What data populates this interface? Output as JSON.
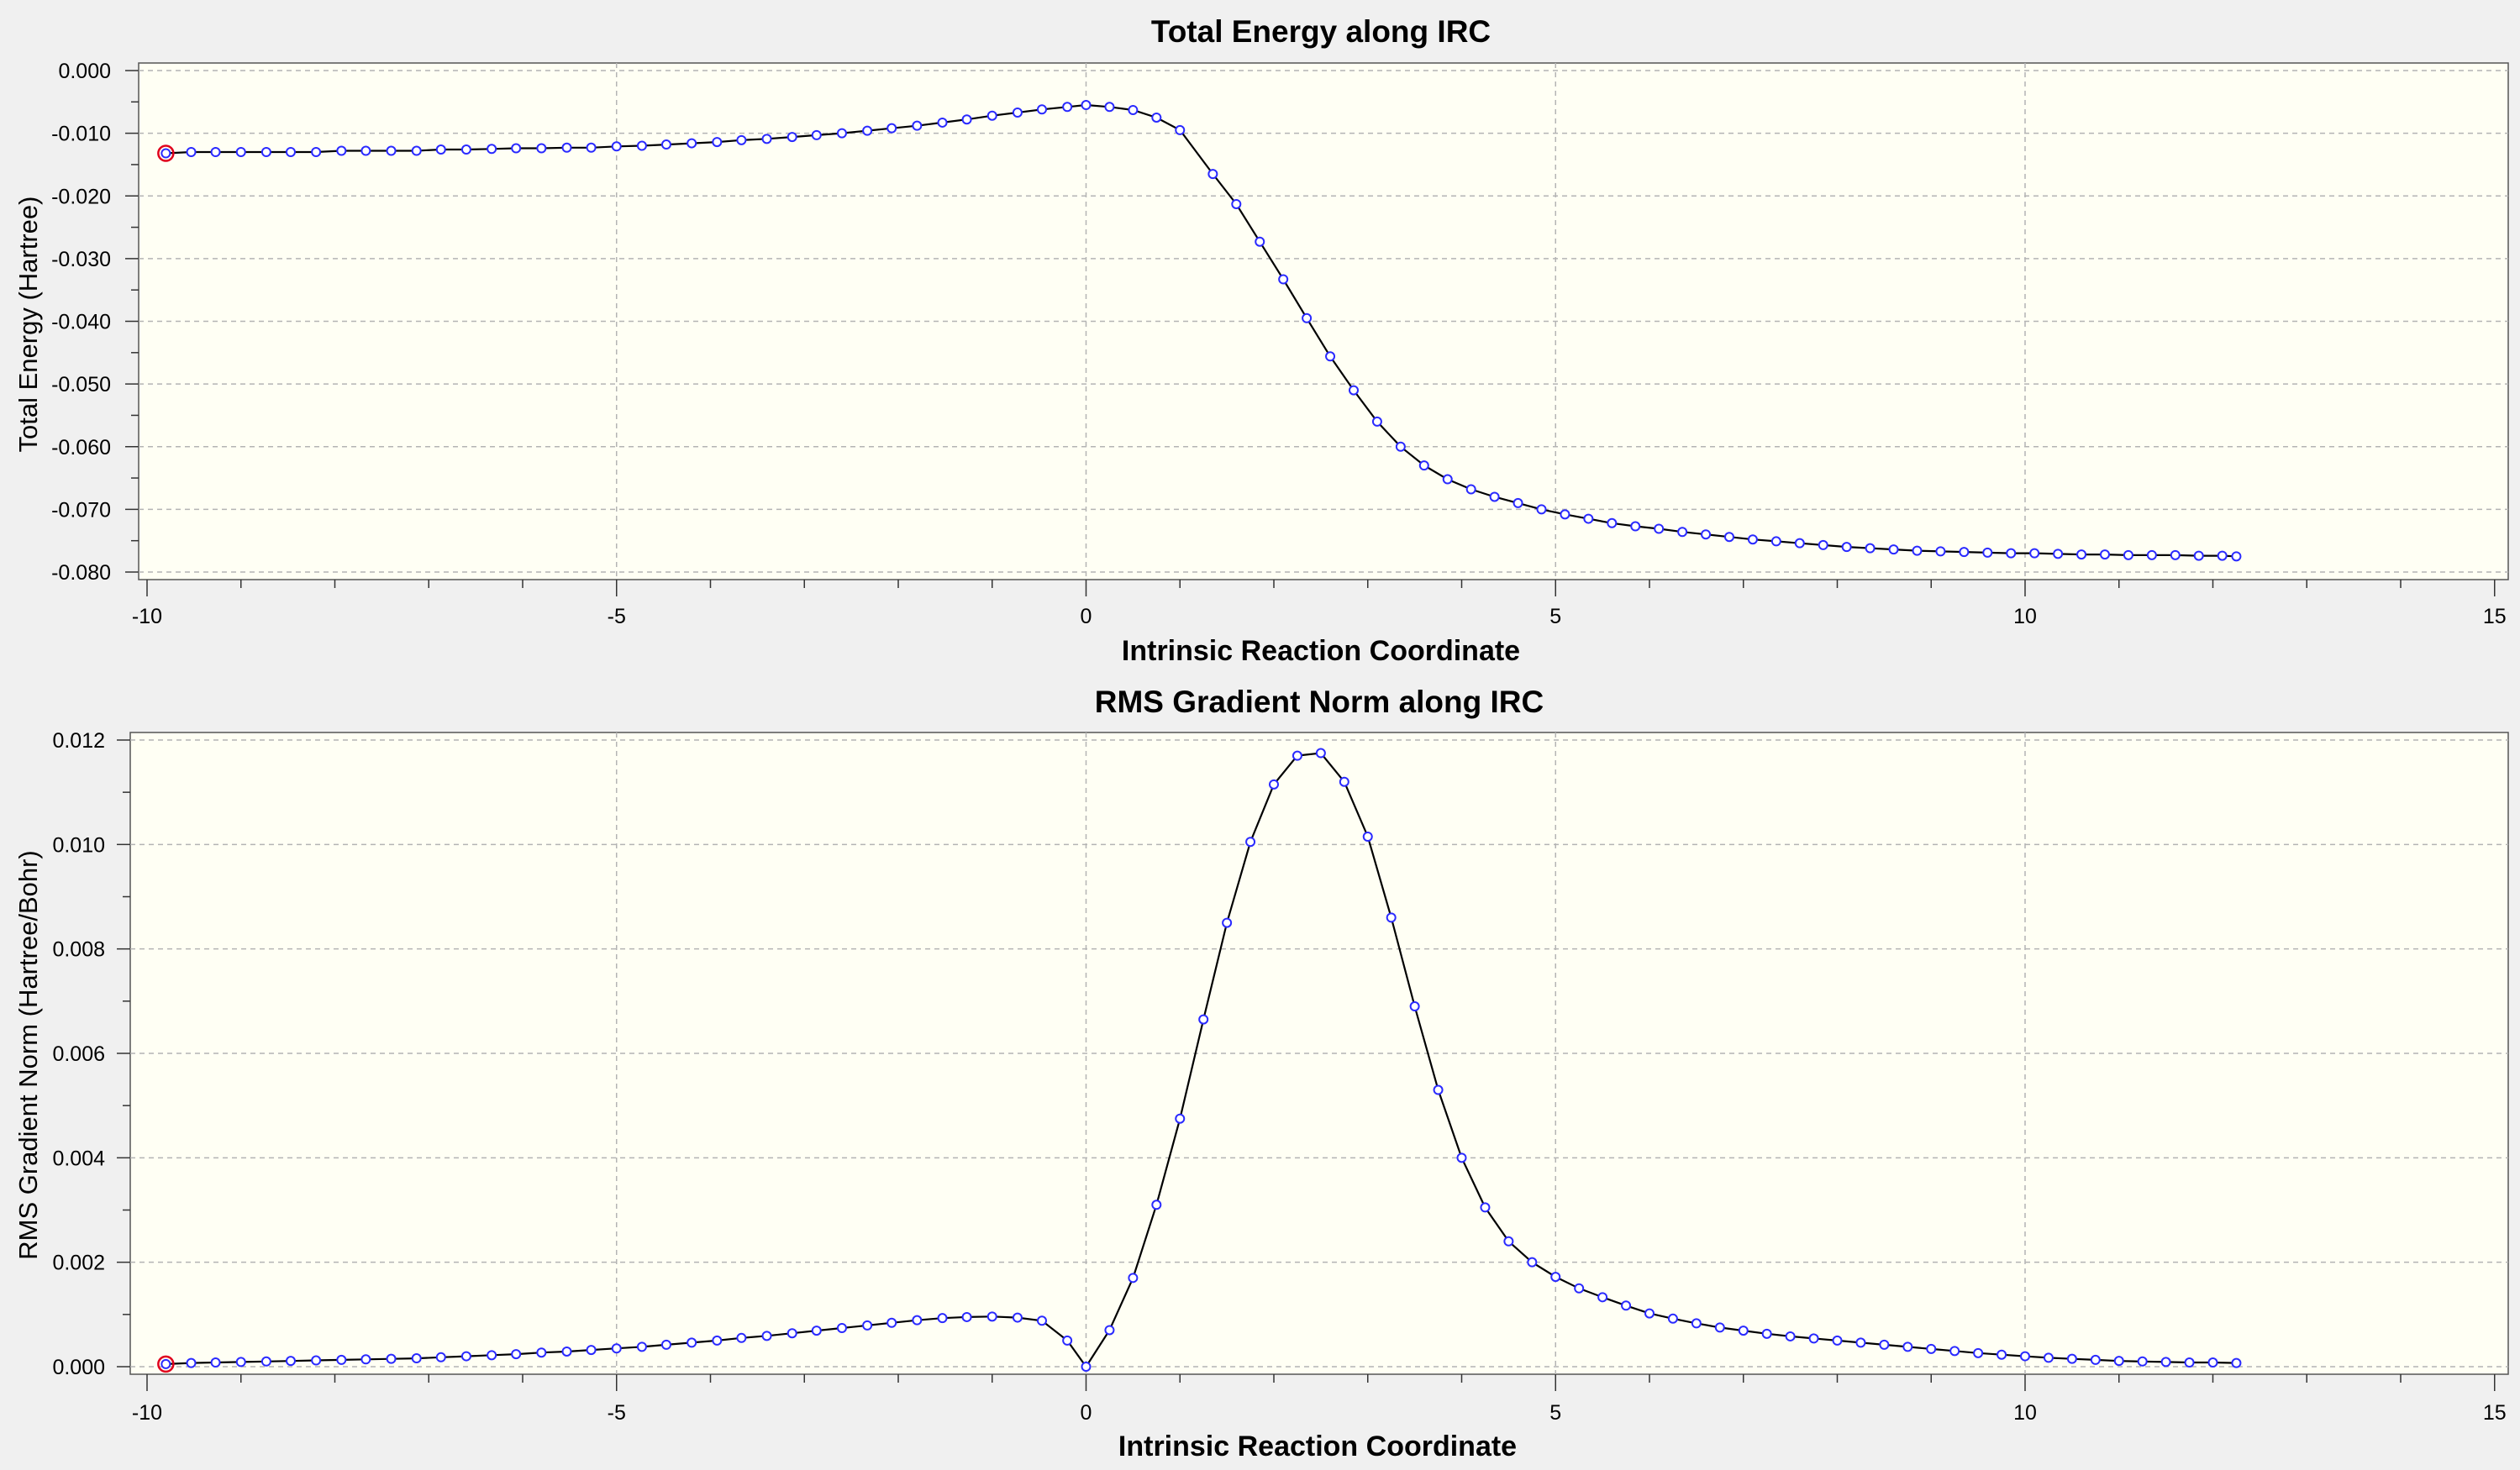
{
  "chart_data": [
    {
      "type": "line",
      "title": "Total Energy along IRC",
      "xlabel": "Intrinsic Reaction Coordinate",
      "ylabel": "Total Energy (Hartree)",
      "xlim": [
        -10,
        15
      ],
      "ylim": [
        -0.08,
        0.0
      ],
      "xticks": [
        "-10",
        "-5",
        "0",
        "5",
        "10",
        "15"
      ],
      "yticks": [
        "0.000",
        "-0.010",
        "-0.020",
        "-0.030",
        "-0.040",
        "-0.050",
        "-0.060",
        "-0.070",
        "-0.080"
      ],
      "grid": true,
      "background": "#fffff4",
      "line_color": "#000000",
      "marker_color": "#2a2aff",
      "highlight_color": "#e0001c",
      "highlight_point": [
        -9.8,
        -0.0132
      ],
      "series": [
        {
          "x": [
            -9.8,
            -9.53,
            -9.27,
            -9.0,
            -8.73,
            -8.47,
            -8.2,
            -7.93,
            -7.67,
            -7.4,
            -7.13,
            -6.87,
            -6.6,
            -6.33,
            -6.07,
            -5.8,
            -5.53,
            -5.27,
            -5.0,
            -4.73,
            -4.47,
            -4.2,
            -3.93,
            -3.67,
            -3.4,
            -3.13,
            -2.87,
            -2.6,
            -2.33,
            -2.07,
            -1.8,
            -1.53,
            -1.27,
            -1.0,
            -0.73,
            -0.47,
            -0.2,
            0.0,
            0.25,
            0.5,
            0.75,
            1.0,
            1.35,
            1.6,
            1.85,
            2.1,
            2.35,
            2.6,
            2.85,
            3.1,
            3.35,
            3.6,
            3.85,
            4.1,
            4.35,
            4.6,
            4.85,
            5.1,
            5.35,
            5.6,
            5.85,
            6.1,
            6.35,
            6.6,
            6.85,
            7.1,
            7.35,
            7.6,
            7.85,
            8.1,
            8.35,
            8.6,
            8.85,
            9.1,
            9.35,
            9.6,
            9.85,
            10.1,
            10.35,
            10.6,
            10.85,
            11.1,
            11.35,
            11.6,
            11.85,
            12.1,
            12.25
          ],
          "values": [
            -0.0132,
            -0.013,
            -0.013,
            -0.013,
            -0.013,
            -0.013,
            -0.013,
            -0.0128,
            -0.0128,
            -0.0128,
            -0.0128,
            -0.0126,
            -0.0126,
            -0.0125,
            -0.0124,
            -0.0124,
            -0.0123,
            -0.0123,
            -0.0121,
            -0.012,
            -0.0118,
            -0.0116,
            -0.0114,
            -0.0111,
            -0.0109,
            -0.0106,
            -0.0103,
            -0.01,
            -0.0096,
            -0.0092,
            -0.0088,
            -0.0083,
            -0.0078,
            -0.0072,
            -0.0067,
            -0.0062,
            -0.0058,
            -0.0055,
            -0.0058,
            -0.0063,
            -0.0075,
            -0.0095,
            -0.0165,
            -0.0213,
            -0.0273,
            -0.0333,
            -0.0395,
            -0.0456,
            -0.051,
            -0.056,
            -0.06,
            -0.063,
            -0.0652,
            -0.0668,
            -0.068,
            -0.069,
            -0.07,
            -0.0708,
            -0.0715,
            -0.0722,
            -0.0727,
            -0.0731,
            -0.0736,
            -0.074,
            -0.0744,
            -0.0748,
            -0.0751,
            -0.0754,
            -0.0757,
            -0.076,
            -0.0762,
            -0.0764,
            -0.0766,
            -0.0767,
            -0.0768,
            -0.0769,
            -0.077,
            -0.077,
            -0.0771,
            -0.0772,
            -0.0772,
            -0.0773,
            -0.0773,
            -0.0773,
            -0.0774,
            -0.0774,
            -0.0775
          ]
        }
      ]
    },
    {
      "type": "line",
      "title": "RMS Gradient Norm along IRC",
      "xlabel": "Intrinsic Reaction Coordinate",
      "ylabel": "RMS Gradient Norm (Hartree/Bohr)",
      "xlim": [
        -10,
        15
      ],
      "ylim": [
        0.0,
        0.012
      ],
      "xticks": [
        "-10",
        "-5",
        "0",
        "5",
        "10",
        "15"
      ],
      "yticks": [
        "0.012",
        "0.010",
        "0.008",
        "0.006",
        "0.004",
        "0.002",
        "0.000"
      ],
      "grid": true,
      "background": "#fffff4",
      "line_color": "#000000",
      "marker_color": "#2a2aff",
      "highlight_color": "#e0001c",
      "highlight_point": [
        -9.8,
        5e-05
      ],
      "series": [
        {
          "x": [
            -9.8,
            -9.53,
            -9.27,
            -9.0,
            -8.73,
            -8.47,
            -8.2,
            -7.93,
            -7.67,
            -7.4,
            -7.13,
            -6.87,
            -6.6,
            -6.33,
            -6.07,
            -5.8,
            -5.53,
            -5.27,
            -5.0,
            -4.73,
            -4.47,
            -4.2,
            -3.93,
            -3.67,
            -3.4,
            -3.13,
            -2.87,
            -2.6,
            -2.33,
            -2.07,
            -1.8,
            -1.53,
            -1.27,
            -1.0,
            -0.73,
            -0.47,
            -0.2,
            0.0,
            0.25,
            0.5,
            0.75,
            1.0,
            1.25,
            1.5,
            1.75,
            2.0,
            2.25,
            2.5,
            2.75,
            3.0,
            3.25,
            3.5,
            3.75,
            4.0,
            4.25,
            4.5,
            4.75,
            5.0,
            5.25,
            5.5,
            5.75,
            6.0,
            6.25,
            6.5,
            6.75,
            7.0,
            7.25,
            7.5,
            7.75,
            8.0,
            8.25,
            8.5,
            8.75,
            9.0,
            9.25,
            9.5,
            9.75,
            10.0,
            10.25,
            10.5,
            10.75,
            11.0,
            11.25,
            11.5,
            11.75,
            12.0,
            12.25
          ],
          "values": [
            5e-05,
            7e-05,
            8e-05,
            9e-05,
            0.0001,
            0.00011,
            0.00012,
            0.00013,
            0.00014,
            0.00015,
            0.00016,
            0.00018,
            0.0002,
            0.00022,
            0.00024,
            0.00027,
            0.00029,
            0.00032,
            0.00035,
            0.00038,
            0.00042,
            0.00046,
            0.0005,
            0.00055,
            0.00059,
            0.00064,
            0.00069,
            0.00074,
            0.00079,
            0.00084,
            0.00089,
            0.00093,
            0.00095,
            0.00096,
            0.00094,
            0.00088,
            0.0005,
            0.0,
            0.0007,
            0.0017,
            0.0031,
            0.00475,
            0.00665,
            0.0085,
            0.01005,
            0.01115,
            0.0117,
            0.01175,
            0.0112,
            0.01015,
            0.0086,
            0.0069,
            0.0053,
            0.004,
            0.00305,
            0.0024,
            0.002,
            0.00172,
            0.0015,
            0.00133,
            0.00117,
            0.00102,
            0.00092,
            0.00083,
            0.00075,
            0.00069,
            0.00063,
            0.00058,
            0.00054,
            0.0005,
            0.00046,
            0.00042,
            0.00038,
            0.00034,
            0.0003,
            0.00026,
            0.00023,
            0.0002,
            0.00017,
            0.00015,
            0.00013,
            0.00011,
            0.0001,
            9e-05,
            8e-05,
            8e-05,
            7e-05
          ]
        }
      ]
    }
  ]
}
